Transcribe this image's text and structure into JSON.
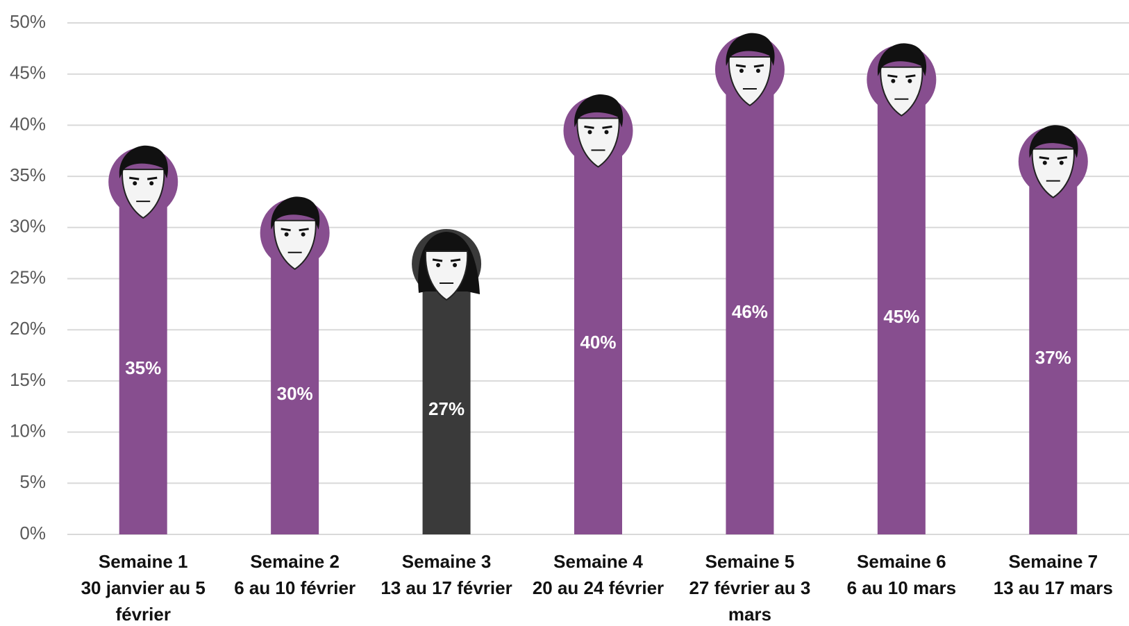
{
  "chart_data": {
    "type": "bar",
    "categories": [
      "Semaine 1\n30 janvier au 5 février",
      "Semaine 2\n6 au 10 février",
      "Semaine 3\n13 au 17 février",
      "Semaine 4\n20 au 24 février",
      "Semaine 5\n27 février au 3 mars",
      "Semaine 6\n6 au 10 mars",
      "Semaine 7\n13 au 17 mars"
    ],
    "values": [
      35,
      30,
      27,
      40,
      46,
      45,
      37
    ],
    "value_labels": [
      "35%",
      "30%",
      "27%",
      "40%",
      "46%",
      "45%",
      "37%"
    ],
    "colors": [
      "#874e8f",
      "#874e8f",
      "#3a3a3a",
      "#874e8f",
      "#874e8f",
      "#874e8f",
      "#874e8f"
    ],
    "ylim": [
      0,
      50
    ],
    "yticks": [
      {
        "value": 0,
        "label": "0%"
      },
      {
        "value": 5,
        "label": "5%"
      },
      {
        "value": 10,
        "label": "10%"
      },
      {
        "value": 15,
        "label": "15%"
      },
      {
        "value": 20,
        "label": "20%"
      },
      {
        "value": 25,
        "label": "25%"
      },
      {
        "value": 30,
        "label": "30%"
      },
      {
        "value": 35,
        "label": "35%"
      },
      {
        "value": 40,
        "label": "40%"
      },
      {
        "value": 45,
        "label": "45%"
      },
      {
        "value": 50,
        "label": "50%"
      }
    ],
    "grid": true
  }
}
